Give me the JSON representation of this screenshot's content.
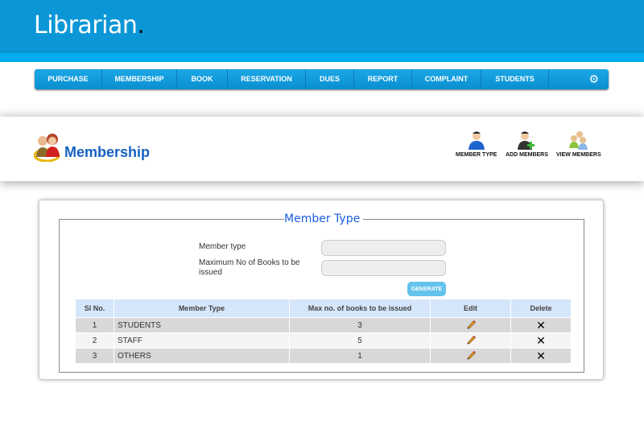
{
  "app": {
    "title": "Librarian",
    "title_dot": "."
  },
  "nav": {
    "items": [
      "PURCHASE",
      "MEMBERSHIP",
      "BOOK",
      "RESERVATION",
      "DUES",
      "REPORT",
      "COMPLAINT",
      "STUDENTS"
    ],
    "settings_icon": "gear-icon"
  },
  "section": {
    "title": "Membership",
    "actions": [
      {
        "label": "MEMBER TYPE",
        "icon": "user-icon"
      },
      {
        "label": "ADD MEMBERS",
        "icon": "add-user-icon"
      },
      {
        "label": "VIEW MEMBERS",
        "icon": "users-group-icon"
      }
    ]
  },
  "form": {
    "legend": "Member Type",
    "member_type_label": "Member type",
    "member_type_value": "",
    "max_books_label": "Maximum No of Books to be issued",
    "max_books_value": "",
    "generate_label": "GENERATE"
  },
  "table": {
    "headers": [
      "Sl No.",
      "Member Type",
      "Max no. of books to be issued",
      "Edit",
      "Delete"
    ],
    "rows": [
      {
        "no": "1",
        "type": "STUDENTS",
        "max": "3"
      },
      {
        "no": "2",
        "type": "STAFF",
        "max": "5"
      },
      {
        "no": "3",
        "type": "OTHERS",
        "max": "1"
      }
    ]
  },
  "colors": {
    "header": "#0b97d7",
    "accent": "#1762c4",
    "table_header": "#d5e6fb"
  }
}
